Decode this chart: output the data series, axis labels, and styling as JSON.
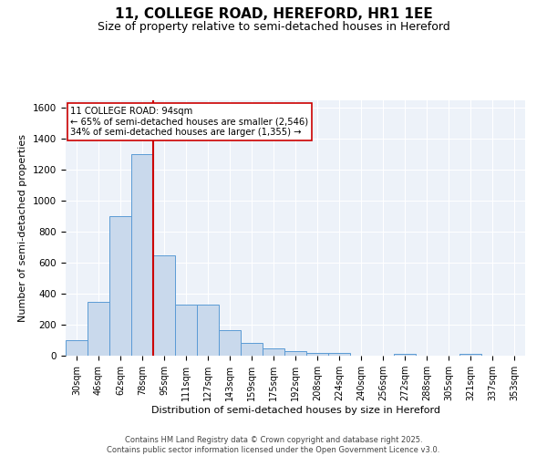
{
  "title": "11, COLLEGE ROAD, HEREFORD, HR1 1EE",
  "subtitle": "Size of property relative to semi-detached houses in Hereford",
  "xlabel": "Distribution of semi-detached houses by size in Hereford",
  "ylabel": "Number of semi-detached properties",
  "categories": [
    "30sqm",
    "46sqm",
    "62sqm",
    "78sqm",
    "95sqm",
    "111sqm",
    "127sqm",
    "143sqm",
    "159sqm",
    "175sqm",
    "192sqm",
    "208sqm",
    "224sqm",
    "240sqm",
    "256sqm",
    "272sqm",
    "288sqm",
    "305sqm",
    "321sqm",
    "337sqm",
    "353sqm"
  ],
  "values": [
    100,
    350,
    900,
    1300,
    650,
    330,
    330,
    165,
    80,
    50,
    28,
    15,
    15,
    0,
    0,
    12,
    0,
    0,
    10,
    0,
    0
  ],
  "bar_color": "#c9d9ec",
  "bar_edge_color": "#5b9bd5",
  "background_color": "#edf2f9",
  "grid_color": "#ffffff",
  "vline_color": "#cc0000",
  "vline_x_index": 4,
  "annotation_title": "11 COLLEGE ROAD: 94sqm",
  "annotation_line1": "← 65% of semi-detached houses are smaller (2,546)",
  "annotation_line2": "34% of semi-detached houses are larger (1,355) →",
  "annotation_box_color": "#ffffff",
  "annotation_box_edge": "#cc0000",
  "ylim": [
    0,
    1650
  ],
  "yticks": [
    0,
    200,
    400,
    600,
    800,
    1000,
    1200,
    1400,
    1600
  ],
  "footer1": "Contains HM Land Registry data © Crown copyright and database right 2025.",
  "footer2": "Contains public sector information licensed under the Open Government Licence v3.0.",
  "title_fontsize": 11,
  "subtitle_fontsize": 9,
  "tick_fontsize": 7,
  "label_fontsize": 8,
  "footer_fontsize": 6
}
